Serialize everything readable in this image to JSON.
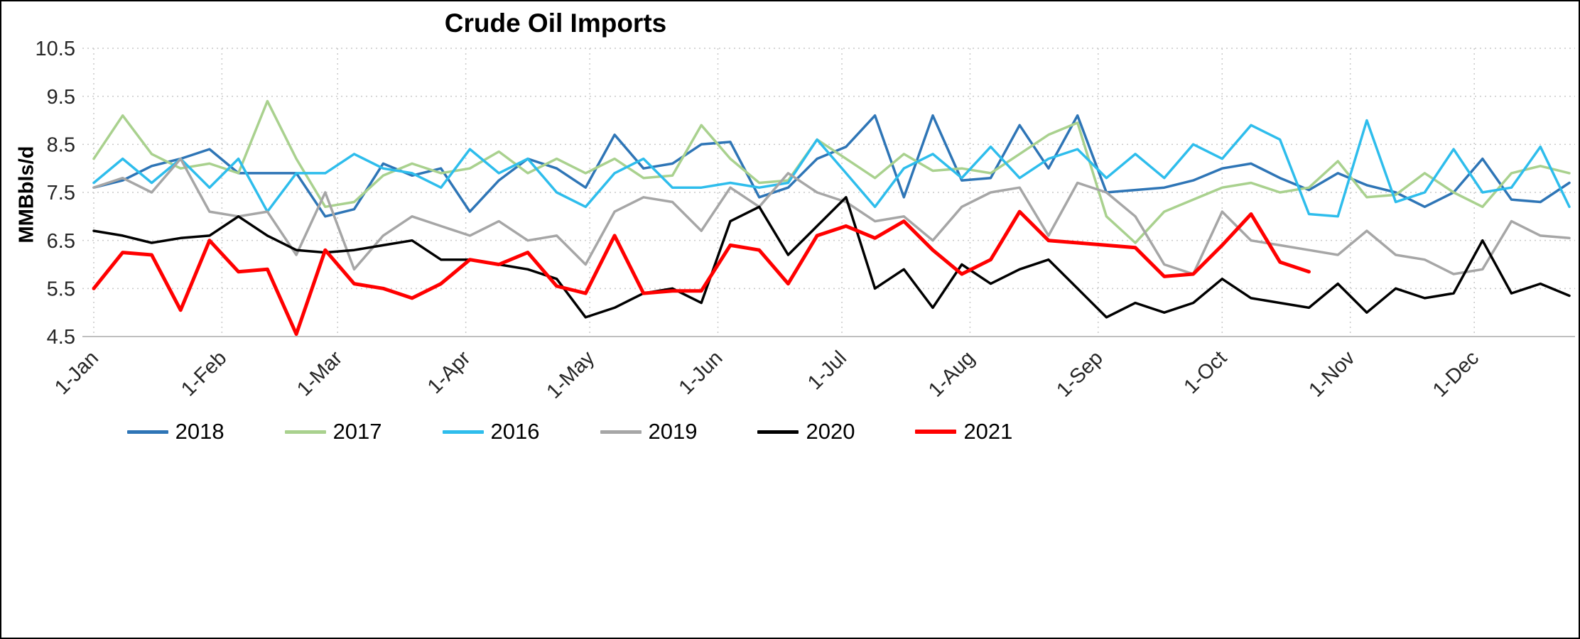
{
  "chart_data": {
    "type": "line",
    "title": "Crude Oil Imports",
    "ylabel": "MMBbls/d",
    "xlabel": "",
    "ylim": [
      4.5,
      10.5
    ],
    "y_ticks": [
      4.5,
      5.5,
      6.5,
      7.5,
      8.5,
      9.5,
      10.5
    ],
    "x_tick_labels": [
      "1-Jan",
      "1-Feb",
      "1-Mar",
      "1-Apr",
      "1-May",
      "1-Jun",
      "1-Jul",
      "1-Aug",
      "1-Sep",
      "1-Oct",
      "1-Nov",
      "1-Dec"
    ],
    "x_frequency": "weekly",
    "grid": "dotted",
    "legend_position": "bottom",
    "legend": [
      "2018",
      "2017",
      "2016",
      "2019",
      "2020",
      "2021"
    ],
    "series": [
      {
        "name": "2018",
        "color": "#2E75B6",
        "stroke_width": 3.5,
        "values": [
          7.6,
          7.75,
          8.05,
          8.2,
          8.4,
          7.9,
          7.9,
          7.9,
          7.0,
          7.15,
          8.1,
          7.85,
          8.0,
          7.1,
          7.75,
          8.2,
          8.0,
          7.6,
          8.7,
          8.0,
          8.1,
          8.5,
          8.55,
          7.4,
          7.6,
          8.2,
          8.45,
          9.1,
          7.4,
          9.1,
          7.75,
          7.8,
          8.9,
          8.0,
          9.1,
          7.5,
          7.55,
          7.6,
          7.75,
          8.0,
          8.1,
          7.8,
          7.55,
          7.9,
          7.65,
          7.5,
          7.2,
          7.5,
          8.2,
          7.35,
          7.3,
          7.7
        ]
      },
      {
        "name": "2017",
        "color": "#A9D18E",
        "stroke_width": 3.5,
        "values": [
          8.2,
          9.1,
          8.3,
          8.0,
          8.1,
          7.9,
          9.4,
          8.2,
          7.2,
          7.3,
          7.85,
          8.1,
          7.9,
          8.0,
          8.35,
          7.9,
          8.2,
          7.9,
          8.2,
          7.8,
          7.85,
          8.9,
          8.2,
          7.7,
          7.75,
          8.6,
          8.2,
          7.8,
          8.3,
          7.95,
          8.0,
          7.9,
          8.3,
          8.7,
          8.95,
          7.0,
          6.45,
          7.1,
          7.35,
          7.6,
          7.7,
          7.5,
          7.6,
          8.15,
          7.4,
          7.45,
          7.9,
          7.5,
          7.2,
          7.9,
          8.05,
          7.9
        ]
      },
      {
        "name": "2016",
        "color": "#2EBDEC",
        "stroke_width": 3.5,
        "values": [
          7.7,
          8.2,
          7.7,
          8.2,
          7.6,
          8.2,
          7.1,
          7.9,
          7.9,
          8.3,
          8.0,
          7.9,
          7.6,
          8.4,
          7.9,
          8.2,
          7.5,
          7.2,
          7.9,
          8.2,
          7.6,
          7.6,
          7.7,
          7.6,
          7.7,
          8.6,
          7.9,
          7.2,
          8.0,
          8.3,
          7.8,
          8.45,
          7.8,
          8.2,
          8.4,
          7.8,
          8.3,
          7.8,
          8.5,
          8.2,
          8.9,
          8.6,
          7.05,
          7.0,
          9.0,
          7.3,
          7.5,
          8.4,
          7.5,
          7.6,
          8.45,
          7.2
        ]
      },
      {
        "name": "2019",
        "color": "#A6A6A6",
        "stroke_width": 3.5,
        "values": [
          7.6,
          7.8,
          7.5,
          8.2,
          7.1,
          7.0,
          7.1,
          6.2,
          7.5,
          5.9,
          6.6,
          7.0,
          6.8,
          6.6,
          6.9,
          6.5,
          6.6,
          6.0,
          7.1,
          7.4,
          7.3,
          6.7,
          7.6,
          7.2,
          7.9,
          7.5,
          7.3,
          6.9,
          7.0,
          6.5,
          7.2,
          7.5,
          7.6,
          6.6,
          7.7,
          7.5,
          7.0,
          6.0,
          5.8,
          7.1,
          6.5,
          6.4,
          6.3,
          6.2,
          6.7,
          6.2,
          6.1,
          5.8,
          5.9,
          6.9,
          6.6,
          6.55
        ]
      },
      {
        "name": "2020",
        "color": "#000000",
        "stroke_width": 3.5,
        "values": [
          6.7,
          6.6,
          6.45,
          6.55,
          6.6,
          7.0,
          6.6,
          6.3,
          6.25,
          6.3,
          6.4,
          6.5,
          6.1,
          6.1,
          6.0,
          5.9,
          5.7,
          4.9,
          5.1,
          5.4,
          5.5,
          5.2,
          6.9,
          7.2,
          6.2,
          6.8,
          7.4,
          5.5,
          5.9,
          5.1,
          6.0,
          5.6,
          5.9,
          6.1,
          5.5,
          4.9,
          5.2,
          5.0,
          5.2,
          5.7,
          5.3,
          5.2,
          5.1,
          5.6,
          5.0,
          5.5,
          5.3,
          5.4,
          6.5,
          5.4,
          5.6,
          5.35
        ]
      },
      {
        "name": "2021",
        "color": "#FF0000",
        "stroke_width": 5,
        "values": [
          5.5,
          6.25,
          6.2,
          5.05,
          6.5,
          5.85,
          5.9,
          4.55,
          6.3,
          5.6,
          5.5,
          5.3,
          5.6,
          6.1,
          6.0,
          6.25,
          5.55,
          5.4,
          6.6,
          5.4,
          5.45,
          5.45,
          6.4,
          6.3,
          5.6,
          6.6,
          6.8,
          6.55,
          6.9,
          6.3,
          5.8,
          6.1,
          7.1,
          6.5,
          6.45,
          6.4,
          6.35,
          5.75,
          5.8,
          6.4,
          7.05,
          6.05,
          5.85
        ]
      }
    ]
  }
}
